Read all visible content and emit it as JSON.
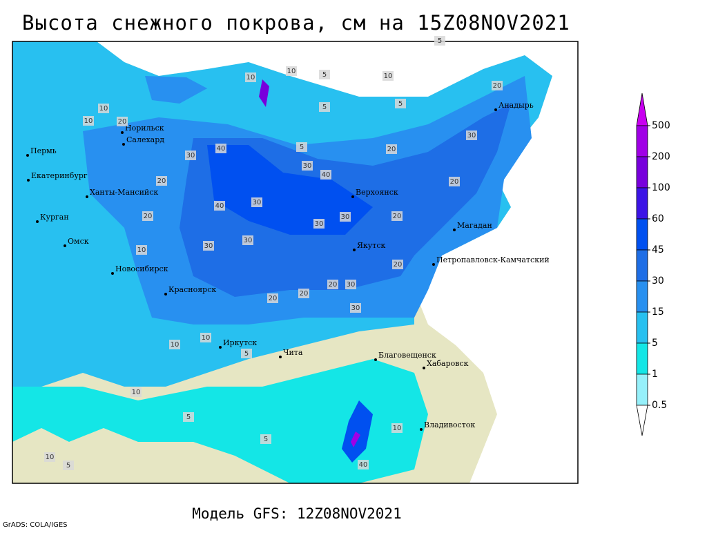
{
  "header": {
    "title": "Высота снежного покрова, см на 15Z08NOV2021"
  },
  "map": {
    "cities": [
      "Анадырь",
      "Пермь",
      "Салехард",
      "Норильск",
      "Екатеринбург",
      "Ханты-Мансийск",
      "Верхоянск",
      "Курган",
      "Магадан",
      "Омск",
      "Якутск",
      "Петропавловск-Камчатский",
      "Новосибирск",
      "Красноярск",
      "Иркутск",
      "Чита",
      "Благовещенск",
      "Хабаровск",
      "Владивосток"
    ],
    "contour_labels": [
      10,
      5,
      10,
      5,
      10,
      5,
      10,
      20,
      10,
      30,
      5,
      20,
      30,
      40,
      30,
      40,
      20,
      20,
      30,
      40,
      30,
      20,
      30,
      30,
      30,
      20,
      20,
      30,
      20,
      10,
      20,
      20,
      30,
      10,
      5,
      10,
      10,
      5,
      10,
      5,
      40,
      5,
      10,
      20,
      5
    ]
  },
  "legend": {
    "levels": [
      500,
      200,
      100,
      60,
      45,
      30,
      15,
      5,
      1,
      0.5
    ],
    "colors": [
      "#c800f0",
      "#a000e6",
      "#7800dc",
      "#3c14e6",
      "#0050f0",
      "#1e6ee6",
      "#2890f0",
      "#28c0f0",
      "#14e6e6",
      "#96f0fa",
      "#ffffff"
    ]
  },
  "footer": {
    "model": "Модель GFS: 12Z08NOV2021"
  },
  "credit": "GrADS: COLA/IGES"
}
